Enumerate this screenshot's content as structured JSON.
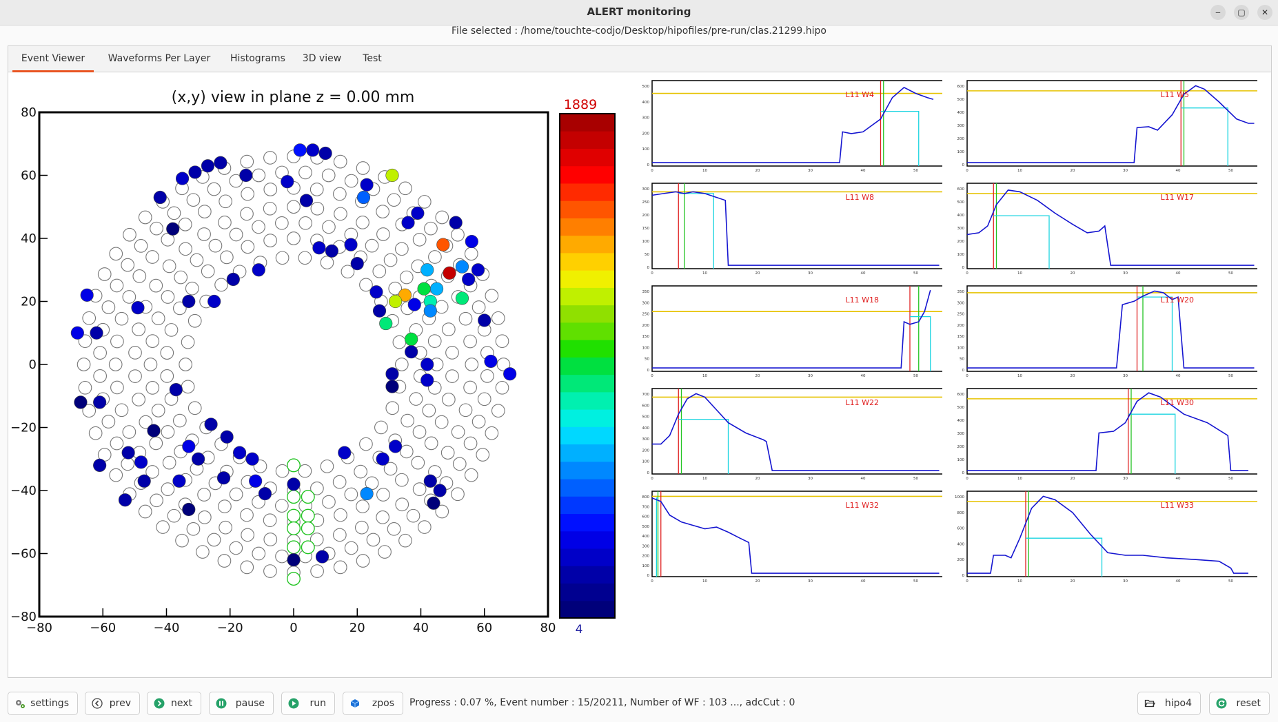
{
  "window": {
    "title": "ALERT monitoring",
    "file_line": "File selected : /home/touchte-codjo/Desktop/hipofiles/pre-run/clas.21299.hipo",
    "minimize_glyph": "‒",
    "maximize_glyph": "▢",
    "close_glyph": "✕"
  },
  "tabs": [
    {
      "label": "Event Viewer",
      "active": true
    },
    {
      "label": "Waveforms Per Layer",
      "active": false
    },
    {
      "label": "Histograms",
      "active": false
    },
    {
      "label": "3D view",
      "active": false
    },
    {
      "label": "Test",
      "active": false
    }
  ],
  "event_view": {
    "title": "(x,y) view in plane z = 0.00 mm",
    "x_ticks": [
      "−80",
      "−60",
      "−40",
      "−20",
      "0",
      "20",
      "40",
      "60",
      "80"
    ],
    "y_ticks": [
      "80",
      "60",
      "40",
      "20",
      "0",
      "−20",
      "−40",
      "−60",
      "−80"
    ],
    "colorbar_max": "1889",
    "colorbar_min": "4",
    "colorbar_colors": [
      "#00007a",
      "#000090",
      "#0000a8",
      "#0000c8",
      "#0000e6",
      "#0010ff",
      "#0038ff",
      "#0060ff",
      "#0088ff",
      "#00b0ff",
      "#00d8ff",
      "#00f0e0",
      "#00f0b0",
      "#00e878",
      "#00e040",
      "#20e000",
      "#60e000",
      "#90e000",
      "#c0f000",
      "#f0f000",
      "#ffd000",
      "#ffaa00",
      "#ff7f00",
      "#ff5500",
      "#ff2a00",
      "#ff0000",
      "#e00000",
      "#c40000",
      "#a80000"
    ],
    "green_cells": [
      {
        "x": 0,
        "y": -32
      },
      {
        "x": 0,
        "y": -42
      },
      {
        "x": 4.5,
        "y": -42
      },
      {
        "x": 0,
        "y": -48
      },
      {
        "x": 4.5,
        "y": -48
      },
      {
        "x": 0,
        "y": -52
      },
      {
        "x": 4.5,
        "y": -52
      },
      {
        "x": 0,
        "y": -58
      },
      {
        "x": 4.5,
        "y": -58
      },
      {
        "x": 0,
        "y": -68
      }
    ],
    "hits": [
      {
        "x": 2,
        "y": 68,
        "c": "#0010ff"
      },
      {
        "x": 6,
        "y": 68,
        "c": "#0000c8"
      },
      {
        "x": 10,
        "y": 67,
        "c": "#0000a8"
      },
      {
        "x": -35,
        "y": 59,
        "c": "#0000c8"
      },
      {
        "x": -31,
        "y": 61,
        "c": "#0000a8"
      },
      {
        "x": -27,
        "y": 63,
        "c": "#0000a8"
      },
      {
        "x": -23,
        "y": 64,
        "c": "#0000a8"
      },
      {
        "x": -42,
        "y": 53,
        "c": "#0000a8"
      },
      {
        "x": -15,
        "y": 60,
        "c": "#0000a8"
      },
      {
        "x": -2,
        "y": 58,
        "c": "#0000c8"
      },
      {
        "x": 31,
        "y": 60,
        "c": "#c0f000"
      },
      {
        "x": 23,
        "y": 57,
        "c": "#0000c8"
      },
      {
        "x": 22,
        "y": 53,
        "c": "#0060ff"
      },
      {
        "x": 4,
        "y": 52,
        "c": "#0000a8"
      },
      {
        "x": 39,
        "y": 48,
        "c": "#0000c8"
      },
      {
        "x": 36,
        "y": 45,
        "c": "#0000c8"
      },
      {
        "x": 51,
        "y": 45,
        "c": "#0000a8"
      },
      {
        "x": -38,
        "y": 43,
        "c": "#00007a"
      },
      {
        "x": 56,
        "y": 39,
        "c": "#0000e6"
      },
      {
        "x": 47,
        "y": 38,
        "c": "#ff5500"
      },
      {
        "x": 8,
        "y": 37,
        "c": "#0000c8"
      },
      {
        "x": 12,
        "y": 36,
        "c": "#0000a8"
      },
      {
        "x": 18,
        "y": 38,
        "c": "#0000c8"
      },
      {
        "x": 20,
        "y": 32,
        "c": "#0000a8"
      },
      {
        "x": 42,
        "y": 30,
        "c": "#00b0ff"
      },
      {
        "x": 53,
        "y": 31,
        "c": "#0088ff"
      },
      {
        "x": 58,
        "y": 30,
        "c": "#0000c8"
      },
      {
        "x": 49,
        "y": 29,
        "c": "#c40000"
      },
      {
        "x": 55,
        "y": 27,
        "c": "#0000c8"
      },
      {
        "x": -11,
        "y": 30,
        "c": "#0000c8"
      },
      {
        "x": -19,
        "y": 27,
        "c": "#0000a8"
      },
      {
        "x": -65,
        "y": 22,
        "c": "#0000e6"
      },
      {
        "x": 26,
        "y": 23,
        "c": "#0000c8"
      },
      {
        "x": 41,
        "y": 24,
        "c": "#00e040"
      },
      {
        "x": 35,
        "y": 22,
        "c": "#ffaa00"
      },
      {
        "x": 43,
        "y": 20,
        "c": "#00f0b0"
      },
      {
        "x": 45,
        "y": 24,
        "c": "#00b0ff"
      },
      {
        "x": 53,
        "y": 21,
        "c": "#00e878"
      },
      {
        "x": 32,
        "y": 20,
        "c": "#c0f000"
      },
      {
        "x": 38,
        "y": 19,
        "c": "#0000e6"
      },
      {
        "x": 43,
        "y": 17,
        "c": "#0088ff"
      },
      {
        "x": 27,
        "y": 17,
        "c": "#0000a8"
      },
      {
        "x": 29,
        "y": 13,
        "c": "#00e878"
      },
      {
        "x": -33,
        "y": 20,
        "c": "#0000a8"
      },
      {
        "x": -25,
        "y": 20,
        "c": "#0000c8"
      },
      {
        "x": -49,
        "y": 18,
        "c": "#0000c8"
      },
      {
        "x": 60,
        "y": 14,
        "c": "#0000a8"
      },
      {
        "x": -68,
        "y": 10,
        "c": "#0000e6"
      },
      {
        "x": -62,
        "y": 10,
        "c": "#0000a8"
      },
      {
        "x": 37,
        "y": 8,
        "c": "#00e040"
      },
      {
        "x": 37,
        "y": 4,
        "c": "#0000a8"
      },
      {
        "x": 62,
        "y": 1,
        "c": "#0000e6"
      },
      {
        "x": 42,
        "y": 0,
        "c": "#0000c8"
      },
      {
        "x": 31,
        "y": -3,
        "c": "#0000a8"
      },
      {
        "x": 68,
        "y": -3,
        "c": "#0000e6"
      },
      {
        "x": 42,
        "y": -5,
        "c": "#0000c8"
      },
      {
        "x": -37,
        "y": -8,
        "c": "#0000a8"
      },
      {
        "x": 31,
        "y": -7,
        "c": "#00007a"
      },
      {
        "x": -67,
        "y": -12,
        "c": "#00007a"
      },
      {
        "x": -61,
        "y": -12,
        "c": "#0000a8"
      },
      {
        "x": -44,
        "y": -21,
        "c": "#00007a"
      },
      {
        "x": -26,
        "y": -19,
        "c": "#0000a8"
      },
      {
        "x": -21,
        "y": -23,
        "c": "#0000a8"
      },
      {
        "x": -52,
        "y": -28,
        "c": "#0000a8"
      },
      {
        "x": -48,
        "y": -31,
        "c": "#0000c8"
      },
      {
        "x": -33,
        "y": -26,
        "c": "#0000e6"
      },
      {
        "x": -17,
        "y": -28,
        "c": "#0000c8"
      },
      {
        "x": 16,
        "y": -28,
        "c": "#0000c8"
      },
      {
        "x": 32,
        "y": -26,
        "c": "#0000c8"
      },
      {
        "x": 28,
        "y": -30,
        "c": "#0000c8"
      },
      {
        "x": -61,
        "y": -32,
        "c": "#0000a8"
      },
      {
        "x": -30,
        "y": -30,
        "c": "#0000a8"
      },
      {
        "x": -13,
        "y": -30,
        "c": "#0000c8"
      },
      {
        "x": -47,
        "y": -37,
        "c": "#0000a8"
      },
      {
        "x": -36,
        "y": -37,
        "c": "#0000c8"
      },
      {
        "x": -22,
        "y": -36,
        "c": "#0000a8"
      },
      {
        "x": -12,
        "y": -37,
        "c": "#0000e6"
      },
      {
        "x": -9,
        "y": -41,
        "c": "#0000a8"
      },
      {
        "x": 0,
        "y": -38,
        "c": "#0000a8"
      },
      {
        "x": 43,
        "y": -37,
        "c": "#0000a8"
      },
      {
        "x": 46,
        "y": -40,
        "c": "#0000a8"
      },
      {
        "x": 23,
        "y": -41,
        "c": "#0088ff"
      },
      {
        "x": 44,
        "y": -44,
        "c": "#00007a"
      },
      {
        "x": -53,
        "y": -43,
        "c": "#0000a8"
      },
      {
        "x": -33,
        "y": -46,
        "c": "#00007a"
      },
      {
        "x": 0,
        "y": -62,
        "c": "#00007a"
      },
      {
        "x": 9,
        "y": -61,
        "c": "#0000a8"
      }
    ],
    "open_cells_note": ""
  },
  "waveforms": [
    {
      "label": "L11 W4",
      "y_ticks": [
        "500",
        "400",
        "300",
        "200",
        "100",
        "0"
      ],
      "x_ticks": [
        "0",
        "10",
        "20",
        "30",
        "40",
        "50"
      ],
      "yellow": 0.15,
      "red": 0.78,
      "green": 0.79,
      "cyan": 0.91,
      "cyan_level": 0.36,
      "curve": [
        [
          0,
          0.96
        ],
        [
          0.64,
          0.96
        ],
        [
          0.65,
          0.6
        ],
        [
          0.68,
          0.62
        ],
        [
          0.72,
          0.6
        ],
        [
          0.78,
          0.45
        ],
        [
          0.82,
          0.2
        ],
        [
          0.86,
          0.08
        ],
        [
          0.9,
          0.15
        ],
        [
          0.94,
          0.2
        ],
        [
          0.96,
          0.22
        ]
      ]
    },
    {
      "label": "L11 W5",
      "y_ticks": [
        "600",
        "500",
        "400",
        "300",
        "200",
        "100",
        "0"
      ],
      "x_ticks": [
        "0",
        "10",
        "20",
        "30",
        "40",
        "50"
      ],
      "yellow": 0.12,
      "red": 0.73,
      "green": 0.74,
      "cyan": 0.89,
      "cyan_level": 0.32,
      "curve": [
        [
          0,
          0.96
        ],
        [
          0.57,
          0.96
        ],
        [
          0.58,
          0.55
        ],
        [
          0.62,
          0.54
        ],
        [
          0.65,
          0.58
        ],
        [
          0.7,
          0.4
        ],
        [
          0.74,
          0.16
        ],
        [
          0.78,
          0.06
        ],
        [
          0.81,
          0.1
        ],
        [
          0.86,
          0.25
        ],
        [
          0.92,
          0.45
        ],
        [
          0.96,
          0.5
        ],
        [
          0.98,
          0.5
        ]
      ]
    },
    {
      "label": "L11 W8",
      "y_ticks": [
        "300",
        "250",
        "200",
        "150",
        "100",
        "50",
        "0"
      ],
      "x_ticks": [
        "0",
        "10",
        "20",
        "30",
        "40",
        "50"
      ],
      "yellow": 0.1,
      "red": 0.09,
      "green": 0.11,
      "cyan": 0.21,
      "cyan_level": 0.12,
      "curve": [
        [
          0,
          0.14
        ],
        [
          0.04,
          0.12
        ],
        [
          0.08,
          0.1
        ],
        [
          0.11,
          0.12
        ],
        [
          0.14,
          0.1
        ],
        [
          0.18,
          0.12
        ],
        [
          0.25,
          0.2
        ],
        [
          0.26,
          0.96
        ],
        [
          0.98,
          0.96
        ]
      ]
    },
    {
      "label": "L11 W17",
      "y_ticks": [
        "600",
        "500",
        "400",
        "300",
        "200",
        "100",
        "0"
      ],
      "x_ticks": [
        "0",
        "10",
        "20",
        "30",
        "40",
        "50"
      ],
      "yellow": 0.12,
      "red": 0.09,
      "green": 0.1,
      "cyan": 0.28,
      "cyan_level": 0.38,
      "curve": [
        [
          0,
          0.6
        ],
        [
          0.04,
          0.58
        ],
        [
          0.07,
          0.5
        ],
        [
          0.1,
          0.25
        ],
        [
          0.14,
          0.08
        ],
        [
          0.18,
          0.1
        ],
        [
          0.24,
          0.2
        ],
        [
          0.3,
          0.35
        ],
        [
          0.36,
          0.48
        ],
        [
          0.41,
          0.58
        ],
        [
          0.45,
          0.56
        ],
        [
          0.47,
          0.5
        ],
        [
          0.49,
          0.96
        ],
        [
          0.98,
          0.96
        ]
      ]
    },
    {
      "label": "L11 W18",
      "y_ticks": [
        "350",
        "300",
        "250",
        "200",
        "150",
        "100",
        "50",
        "0"
      ],
      "x_ticks": [
        "0",
        "10",
        "20",
        "30",
        "40",
        "50"
      ],
      "yellow": 0.3,
      "red": 0.88,
      "green": 0.91,
      "cyan": 0.95,
      "cyan_level": 0.36,
      "curve": [
        [
          0,
          0.96
        ],
        [
          0.85,
          0.96
        ],
        [
          0.86,
          0.42
        ],
        [
          0.88,
          0.45
        ],
        [
          0.91,
          0.42
        ],
        [
          0.93,
          0.3
        ],
        [
          0.95,
          0.05
        ]
      ]
    },
    {
      "label": "L11 W20",
      "y_ticks": [
        "350",
        "300",
        "250",
        "200",
        "150",
        "100",
        "50",
        "0"
      ],
      "x_ticks": [
        "0",
        "10",
        "20",
        "30",
        "40",
        "50"
      ],
      "yellow": 0.08,
      "red": 0.58,
      "green": 0.6,
      "cyan": 0.7,
      "cyan_level": 0.13,
      "curve": [
        [
          0,
          0.96
        ],
        [
          0.51,
          0.96
        ],
        [
          0.53,
          0.22
        ],
        [
          0.57,
          0.18
        ],
        [
          0.6,
          0.12
        ],
        [
          0.64,
          0.06
        ],
        [
          0.67,
          0.08
        ],
        [
          0.7,
          0.16
        ],
        [
          0.72,
          0.13
        ],
        [
          0.74,
          0.96
        ],
        [
          0.98,
          0.96
        ]
      ]
    },
    {
      "label": "L11 W22",
      "y_ticks": [
        "700",
        "600",
        "500",
        "400",
        "300",
        "200",
        "100",
        "0"
      ],
      "x_ticks": [
        "0",
        "10",
        "20",
        "30",
        "40",
        "50"
      ],
      "yellow": 0.1,
      "red": 0.09,
      "green": 0.1,
      "cyan": 0.26,
      "cyan_level": 0.36,
      "curve": [
        [
          0,
          0.65
        ],
        [
          0.03,
          0.65
        ],
        [
          0.06,
          0.55
        ],
        [
          0.09,
          0.3
        ],
        [
          0.12,
          0.12
        ],
        [
          0.15,
          0.06
        ],
        [
          0.18,
          0.1
        ],
        [
          0.22,
          0.25
        ],
        [
          0.26,
          0.4
        ],
        [
          0.32,
          0.52
        ],
        [
          0.38,
          0.6
        ],
        [
          0.39,
          0.62
        ],
        [
          0.41,
          0.96
        ],
        [
          0.98,
          0.96
        ]
      ]
    },
    {
      "label": "L11 W30",
      "y_ticks": [
        "600",
        "500",
        "400",
        "300",
        "200",
        "100",
        "0"
      ],
      "x_ticks": [
        "0",
        "10",
        "20",
        "30",
        "40",
        "50"
      ],
      "yellow": 0.12,
      "red": 0.55,
      "green": 0.56,
      "cyan": 0.71,
      "cyan_level": 0.3,
      "curve": [
        [
          0,
          0.96
        ],
        [
          0.44,
          0.96
        ],
        [
          0.45,
          0.52
        ],
        [
          0.5,
          0.5
        ],
        [
          0.54,
          0.4
        ],
        [
          0.58,
          0.15
        ],
        [
          0.62,
          0.05
        ],
        [
          0.66,
          0.1
        ],
        [
          0.7,
          0.2
        ],
        [
          0.74,
          0.3
        ],
        [
          0.82,
          0.4
        ],
        [
          0.89,
          0.55
        ],
        [
          0.9,
          0.96
        ],
        [
          0.96,
          0.96
        ]
      ]
    },
    {
      "label": "L11 W32",
      "y_ticks": [
        "800",
        "700",
        "600",
        "500",
        "400",
        "300",
        "200",
        "100",
        "0"
      ],
      "x_ticks": [
        "0",
        "10",
        "20",
        "30",
        "40",
        "50"
      ],
      "yellow": 0.06,
      "red": 0.03,
      "green": 0.02,
      "cyan": 0.015,
      "cyan_level": 0.08,
      "curve": [
        [
          0,
          0.08
        ],
        [
          0.03,
          0.12
        ],
        [
          0.06,
          0.28
        ],
        [
          0.1,
          0.36
        ],
        [
          0.14,
          0.4
        ],
        [
          0.18,
          0.44
        ],
        [
          0.22,
          0.42
        ],
        [
          0.26,
          0.48
        ],
        [
          0.3,
          0.55
        ],
        [
          0.33,
          0.6
        ],
        [
          0.34,
          0.96
        ],
        [
          0.98,
          0.96
        ]
      ]
    },
    {
      "label": "L11 W33",
      "y_ticks": [
        "1000",
        "800",
        "600",
        "400",
        "200",
        "0"
      ],
      "x_ticks": [
        "0",
        "10",
        "20",
        "30",
        "40",
        "50"
      ],
      "yellow": 0.12,
      "red": 0.2,
      "green": 0.21,
      "cyan": 0.46,
      "cyan_level": 0.55,
      "curve": [
        [
          0,
          0.96
        ],
        [
          0.08,
          0.96
        ],
        [
          0.09,
          0.75
        ],
        [
          0.13,
          0.75
        ],
        [
          0.15,
          0.78
        ],
        [
          0.18,
          0.55
        ],
        [
          0.22,
          0.2
        ],
        [
          0.26,
          0.06
        ],
        [
          0.3,
          0.1
        ],
        [
          0.36,
          0.25
        ],
        [
          0.42,
          0.5
        ],
        [
          0.48,
          0.72
        ],
        [
          0.54,
          0.75
        ],
        [
          0.6,
          0.75
        ],
        [
          0.68,
          0.78
        ],
        [
          0.78,
          0.8
        ],
        [
          0.86,
          0.82
        ],
        [
          0.9,
          0.9
        ],
        [
          0.91,
          0.96
        ],
        [
          0.96,
          0.96
        ]
      ]
    }
  ],
  "controls": {
    "settings": "settings",
    "prev": "prev",
    "next": "next",
    "pause": "pause",
    "run": "run",
    "zpos": "zpos",
    "hipo4": "hipo4",
    "reset": "reset",
    "progress": "Progress : 0.07 %, Event number : 15/20211, Number of WF : 103 ..., adcCut : 0"
  }
}
